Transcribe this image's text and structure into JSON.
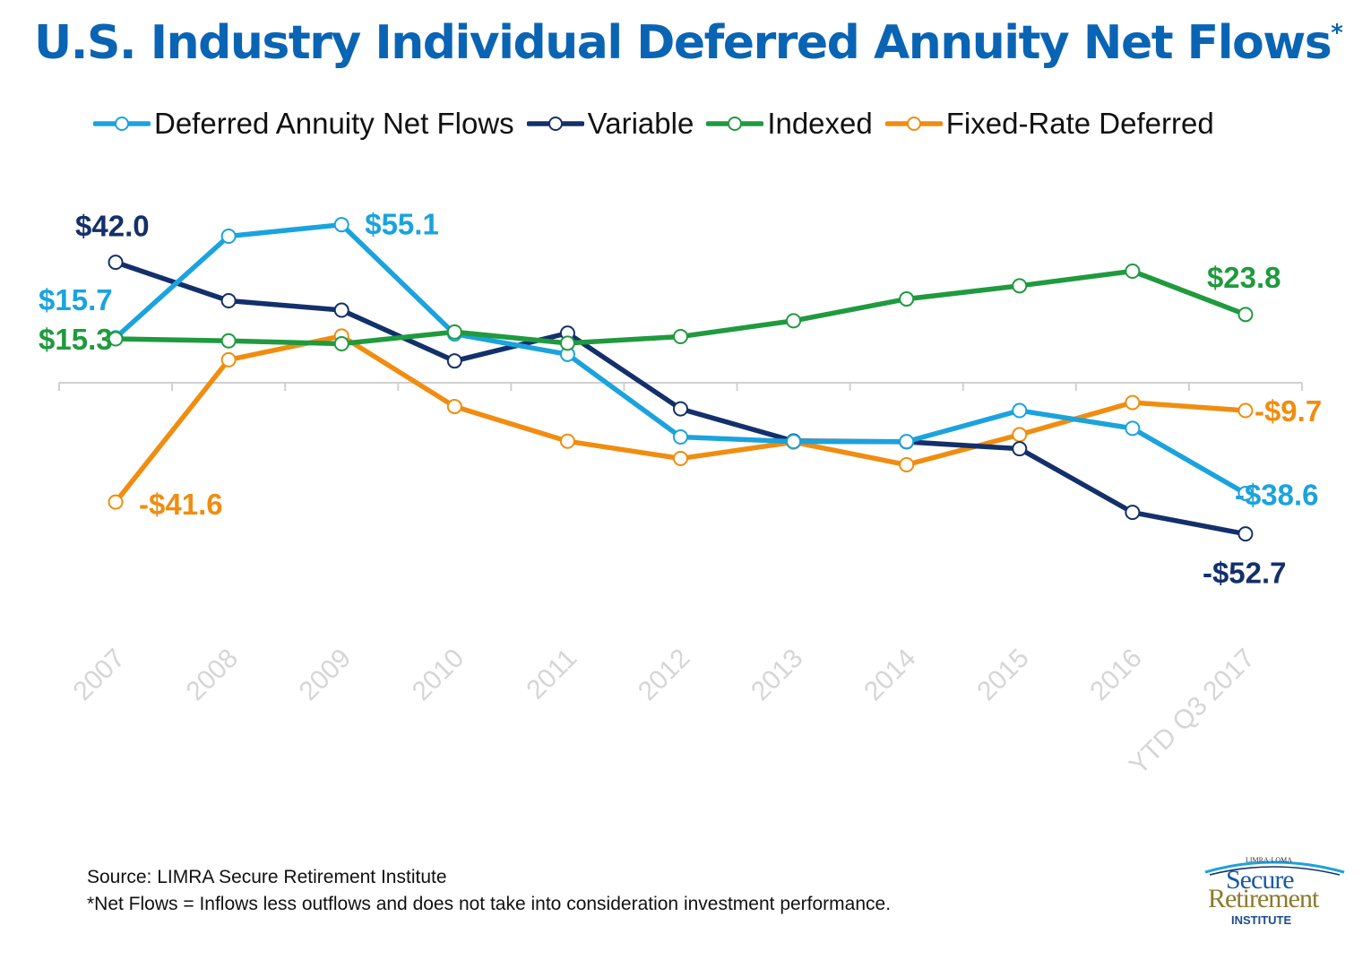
{
  "title": "U.S. Industry Individual Deferred Annuity Net Flows",
  "title_marker": "*",
  "source": {
    "line1": "Source: LIMRA Secure Retirement Institute",
    "line2": "*Net Flows = Inflows less outflows and does not take into consideration investment performance."
  },
  "logo": {
    "top_text": "LIMRA·LOMA",
    "line1": "Secure",
    "line2": "Retirement",
    "line3": "INSTITUTE"
  },
  "chart_data": {
    "type": "line",
    "title": "U.S. Industry Individual Deferred Annuity Net Flows*",
    "xlabel": "",
    "ylabel": "",
    "ylim": [
      -80,
      80
    ],
    "grid": false,
    "legend_position": "top",
    "categories": [
      "2007",
      "2008",
      "2009",
      "2010",
      "2011",
      "2012",
      "2013",
      "2014",
      "2015",
      "2016",
      "YTD Q3 2017"
    ],
    "series": [
      {
        "name": "Deferred Annuity Net Flows",
        "color": "#1aa3dd",
        "values": [
          15.7,
          51.1,
          55.1,
          17.0,
          9.9,
          -18.9,
          -20.5,
          -20.5,
          -9.7,
          -15.9,
          -38.6
        ],
        "labels": [
          {
            "index": 0,
            "text": "$15.7"
          },
          {
            "index": 2,
            "text": "$55.1"
          },
          {
            "index": 10,
            "text": "-$38.6"
          }
        ]
      },
      {
        "name": "Variable",
        "color": "#13306b",
        "values": [
          42.0,
          28.6,
          25.3,
          7.6,
          17.3,
          -9.1,
          -20.3,
          -20.6,
          -23.0,
          -45.2,
          -52.7
        ],
        "labels": [
          {
            "index": 0,
            "text": "$42.0"
          },
          {
            "index": 10,
            "text": "-$52.7"
          }
        ]
      },
      {
        "name": "Indexed",
        "color": "#1f9a3e",
        "values": [
          15.3,
          14.6,
          13.6,
          17.7,
          13.8,
          16.1,
          21.6,
          29.2,
          33.8,
          38.9,
          23.8
        ],
        "labels": [
          {
            "index": 0,
            "text": "$15.3"
          },
          {
            "index": 10,
            "text": "$23.8"
          }
        ]
      },
      {
        "name": "Fixed-Rate Deferred",
        "color": "#f08d10",
        "values": [
          -41.6,
          8.0,
          16.3,
          -8.3,
          -20.4,
          -26.4,
          -20.7,
          -28.6,
          -18.1,
          -6.9,
          -9.7
        ],
        "labels": [
          {
            "index": 0,
            "text": "-$41.6"
          },
          {
            "index": 10,
            "text": "-$9.7"
          }
        ]
      }
    ]
  }
}
